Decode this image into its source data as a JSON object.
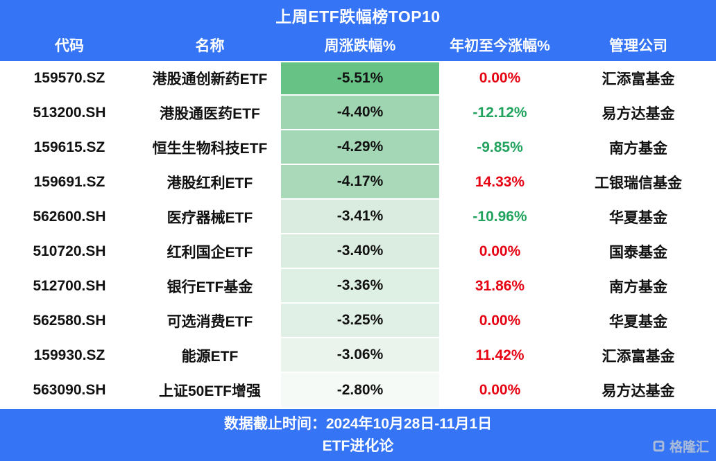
{
  "page": {
    "title": "上周ETF跌幅榜TOP10"
  },
  "table": {
    "columns": [
      "代码",
      "名称",
      "周涨跌幅%",
      "年初至今涨幅%",
      "管理公司"
    ],
    "rows": [
      {
        "code": "159570.SZ",
        "name": "港股通创新药ETF",
        "week_change": "-5.51%",
        "week_bg": "#67C286",
        "ytd_change": "0.00%",
        "ytd_dir": "up",
        "company": "汇添富基金"
      },
      {
        "code": "513200.SH",
        "name": "港股通医药ETF",
        "week_change": "-4.40%",
        "week_bg": "#A0D5B2",
        "ytd_change": "-12.12%",
        "ytd_dir": "down",
        "company": "易方达基金"
      },
      {
        "code": "159615.SZ",
        "name": "恒生生物科技ETF",
        "week_change": "-4.29%",
        "week_bg": "#A4D7B5",
        "ytd_change": "-9.85%",
        "ytd_dir": "down",
        "company": "南方基金"
      },
      {
        "code": "159691.SZ",
        "name": "港股红利ETF",
        "week_change": "-4.17%",
        "week_bg": "#A9D9B9",
        "ytd_change": "14.33%",
        "ytd_dir": "up",
        "company": "工银瑞信基金"
      },
      {
        "code": "562600.SH",
        "name": "医疗器械ETF",
        "week_change": "-3.41%",
        "week_bg": "#D9ECDF",
        "ytd_change": "-10.96%",
        "ytd_dir": "down",
        "company": "华夏基金"
      },
      {
        "code": "510720.SH",
        "name": "红利国企ETF",
        "week_change": "-3.40%",
        "week_bg": "#DBEDE1",
        "ytd_change": "0.00%",
        "ytd_dir": "up",
        "company": "国泰基金"
      },
      {
        "code": "512700.SH",
        "name": "银行ETF基金",
        "week_change": "-3.36%",
        "week_bg": "#DEEFE3",
        "ytd_change": "31.86%",
        "ytd_dir": "up",
        "company": "南方基金"
      },
      {
        "code": "562580.SH",
        "name": "可选消费ETF",
        "week_change": "-3.25%",
        "week_bg": "#E1F0E6",
        "ytd_change": "0.00%",
        "ytd_dir": "up",
        "company": "华夏基金"
      },
      {
        "code": "159930.SZ",
        "name": "能源ETF",
        "week_change": "-3.06%",
        "week_bg": "#EAF4ED",
        "ytd_change": "11.42%",
        "ytd_dir": "up",
        "company": "汇添富基金"
      },
      {
        "code": "563090.SH",
        "name": "上证50ETF增强",
        "week_change": "-2.80%",
        "week_bg": "#F6FAF7",
        "ytd_change": "0.00%",
        "ytd_dir": "up",
        "company": "易方达基金"
      }
    ]
  },
  "footer": {
    "line1": "数据截止时间：2024年10月28日-11月1日",
    "line2": "ETF进化论"
  },
  "watermark": {
    "brand": "格隆汇"
  },
  "colors": {
    "header_blue": "#3574F5",
    "up_red": "#E60012",
    "down_green": "#21A35E",
    "text_black": "#111111"
  },
  "chart_data": {
    "type": "table",
    "title": "上周ETF跌幅榜TOP10",
    "columns": [
      "代码",
      "名称",
      "周涨跌幅%",
      "年初至今涨幅%",
      "管理公司"
    ],
    "rows": [
      [
        "159570.SZ",
        "港股通创新药ETF",
        "-5.51%",
        "0.00%",
        "汇添富基金"
      ],
      [
        "513200.SH",
        "港股通医药ETF",
        "-4.40%",
        "-12.12%",
        "易方达基金"
      ],
      [
        "159615.SZ",
        "恒生生物科技ETF",
        "-4.29%",
        "-9.85%",
        "南方基金"
      ],
      [
        "159691.SZ",
        "港股红利ETF",
        "-4.17%",
        "14.33%",
        "工银瑞信基金"
      ],
      [
        "562600.SH",
        "医疗器械ETF",
        "-3.41%",
        "-10.96%",
        "华夏基金"
      ],
      [
        "510720.SH",
        "红利国企ETF",
        "-3.40%",
        "0.00%",
        "国泰基金"
      ],
      [
        "512700.SH",
        "银行ETF基金",
        "-3.36%",
        "31.86%",
        "南方基金"
      ],
      [
        "562580.SH",
        "可选消费ETF",
        "-3.25%",
        "0.00%",
        "华夏基金"
      ],
      [
        "159930.SZ",
        "能源ETF",
        "-3.06%",
        "11.42%",
        "汇添富基金"
      ],
      [
        "563090.SH",
        "上证50ETF增强",
        "-2.80%",
        "0.00%",
        "易方达基金"
      ]
    ],
    "notes": "周涨跌幅% column uses green color scale: darkest #67C286 at -5.51% fading to near-white #F6FAF7 at -2.80%. YTD values: red = non-negative, green = negative.",
    "footer": [
      "数据截止时间：2024年10月28日-11月1日",
      "ETF进化论"
    ]
  }
}
